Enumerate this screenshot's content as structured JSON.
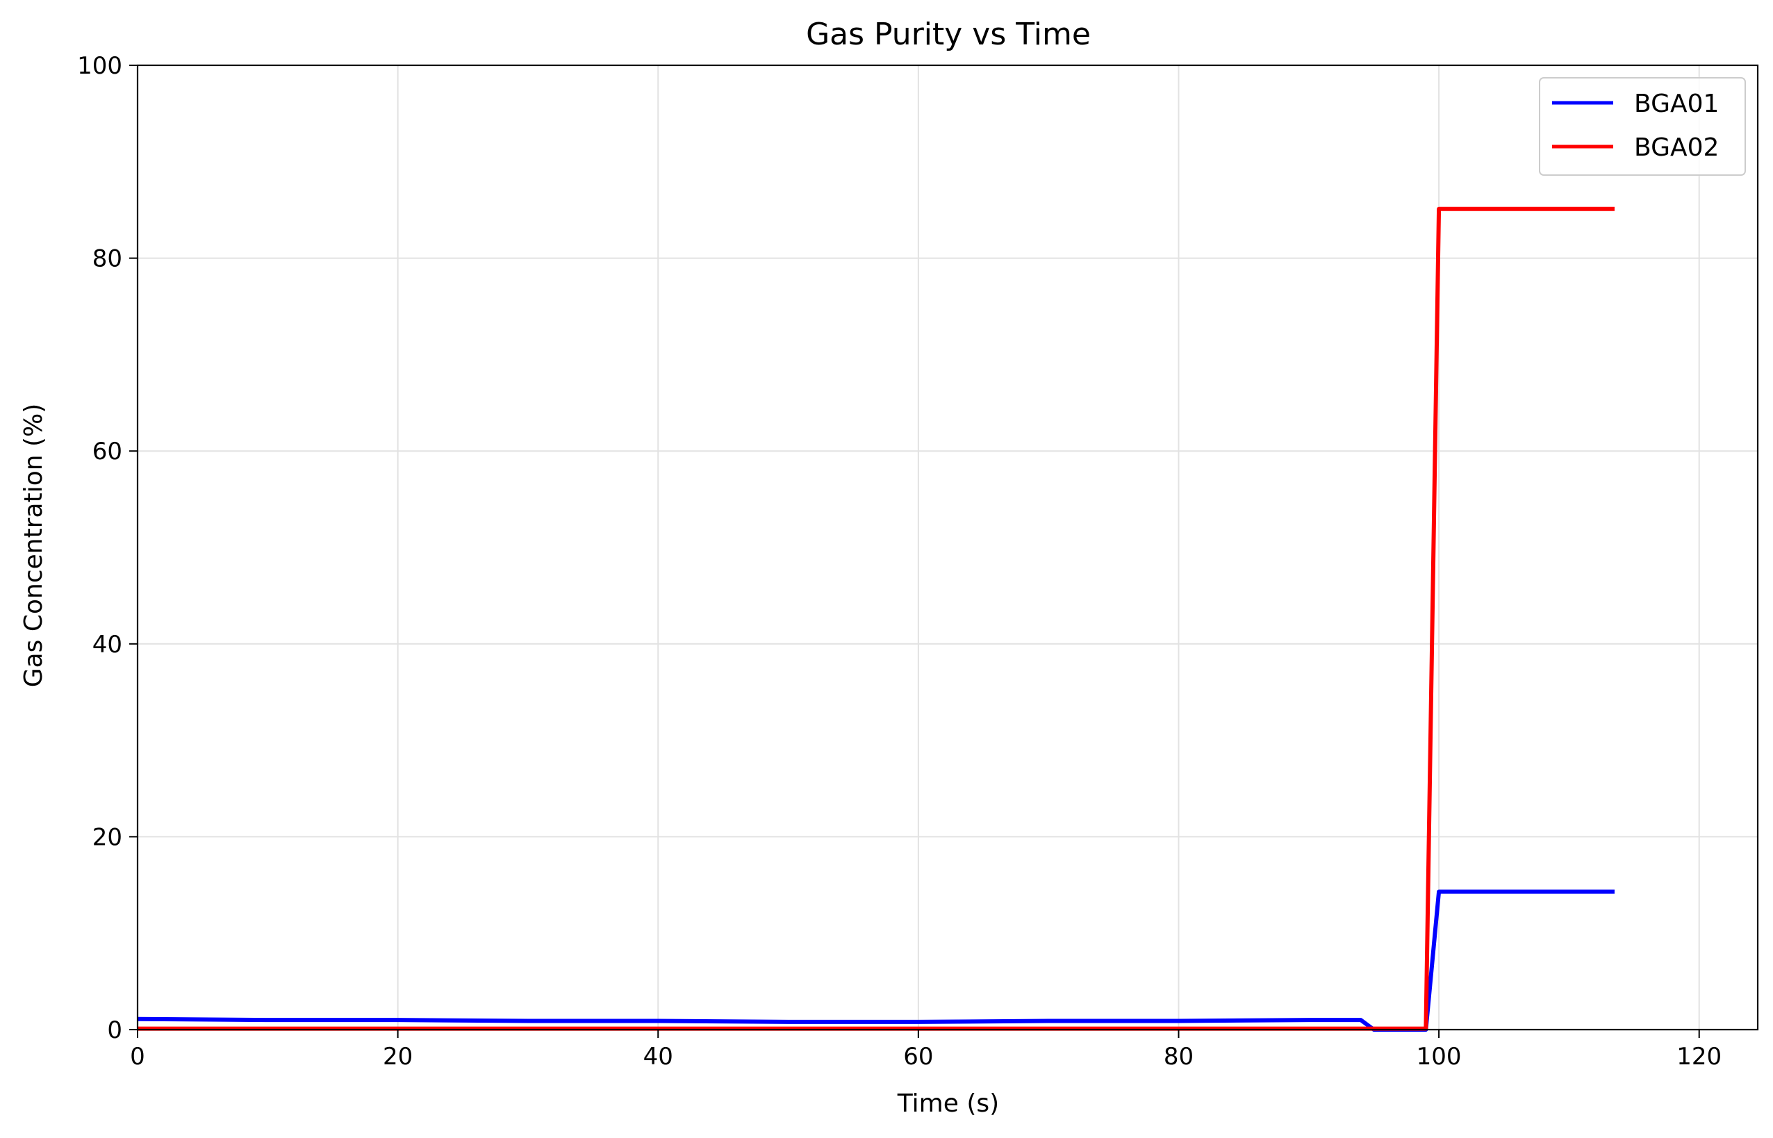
{
  "chart_data": {
    "type": "line",
    "title": "Gas Purity vs Time",
    "xlabel": "Time (s)",
    "ylabel": "Gas Concentration (%)",
    "xlim": [
      0,
      124.5
    ],
    "ylim": [
      0,
      100
    ],
    "xticks": [
      0,
      20,
      40,
      60,
      80,
      100,
      120
    ],
    "yticks": [
      0,
      20,
      40,
      60,
      80,
      100
    ],
    "grid": true,
    "legend_position": "top-right",
    "series": [
      {
        "name": "BGA01",
        "color": "#0000ff",
        "x": [
          0,
          10,
          20,
          30,
          40,
          50,
          60,
          70,
          80,
          90,
          94,
          95,
          99,
          100,
          105,
          110,
          113.5
        ],
        "y": [
          1.1,
          1.0,
          1.0,
          0.9,
          0.9,
          0.8,
          0.8,
          0.9,
          0.9,
          1.0,
          1.0,
          0.0,
          0.0,
          14.3,
          14.3,
          14.3,
          14.3
        ]
      },
      {
        "name": "BGA02",
        "color": "#ff0000",
        "x": [
          0,
          50,
          99,
          100,
          105,
          110,
          113.5
        ],
        "y": [
          0.1,
          0.1,
          0.1,
          85.1,
          85.1,
          85.1,
          85.1
        ]
      }
    ]
  }
}
